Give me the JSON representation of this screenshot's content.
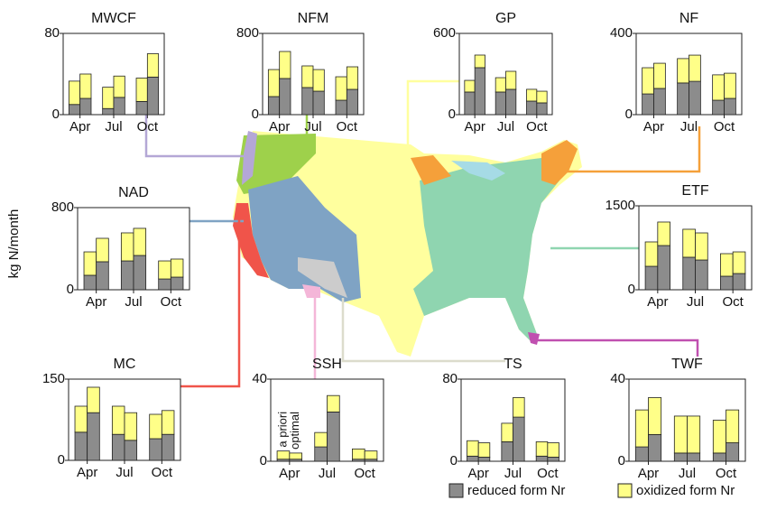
{
  "y_label": "kg N/month",
  "legend": [
    {
      "name": "reduced form Nr",
      "color": "#8c8c8c"
    },
    {
      "name": "oxidized form Nr",
      "color": "#ffff88"
    }
  ],
  "chart_data": [
    {
      "type": "bar",
      "title": "MWCF",
      "categories": [
        "Apr",
        "Jul",
        "Oct"
      ],
      "ylim": [
        0,
        80
      ],
      "yticks": [
        0,
        80
      ],
      "series": [
        {
          "reduced": [
            10,
            6,
            13
          ],
          "oxidized": [
            23,
            21,
            23
          ]
        },
        {
          "reduced": [
            16,
            17,
            37
          ],
          "oxidized": [
            24,
            21,
            23
          ]
        }
      ]
    },
    {
      "type": "bar",
      "title": "NFM",
      "categories": [
        "Apr",
        "Jul",
        "Oct"
      ],
      "ylim": [
        0,
        800
      ],
      "yticks": [
        0,
        800
      ],
      "series": [
        {
          "reduced": [
            178,
            267,
            142
          ],
          "oxidized": [
            266,
            213,
            231
          ]
        },
        {
          "reduced": [
            356,
            231,
            249
          ],
          "oxidized": [
            266,
            213,
            222
          ]
        }
      ]
    },
    {
      "type": "bar",
      "title": "GP",
      "categories": [
        "Apr",
        "Jul",
        "Oct"
      ],
      "ylim": [
        0,
        600
      ],
      "yticks": [
        0,
        600
      ],
      "series": [
        {
          "reduced": [
            167,
            167,
            100
          ],
          "oxidized": [
            86,
            106,
            87
          ]
        },
        {
          "reduced": [
            347,
            187,
            87
          ],
          "oxidized": [
            93,
            133,
            86
          ]
        }
      ]
    },
    {
      "type": "bar",
      "title": "NF",
      "categories": [
        "Apr",
        "Jul",
        "Oct"
      ],
      "ylim": [
        0,
        400
      ],
      "yticks": [
        0,
        400
      ],
      "series": [
        {
          "reduced": [
            102,
            156,
            71
          ],
          "oxidized": [
            129,
            120,
            125
          ]
        },
        {
          "reduced": [
            129,
            164,
            80
          ],
          "oxidized": [
            124,
            129,
            124
          ]
        }
      ]
    },
    {
      "type": "bar",
      "title": "NAD",
      "categories": [
        "Apr",
        "Jul",
        "Oct"
      ],
      "ylim": [
        0,
        800
      ],
      "yticks": [
        0,
        800
      ],
      "series": [
        {
          "reduced": [
            141,
            281,
            105
          ],
          "oxidized": [
            228,
            273,
            176
          ]
        },
        {
          "reduced": [
            273,
            334,
            123
          ],
          "oxidized": [
            228,
            264,
            176
          ]
        }
      ]
    },
    {
      "type": "bar",
      "title": "ETF",
      "categories": [
        "Apr",
        "Jul",
        "Oct"
      ],
      "ylim": [
        0,
        1500
      ],
      "yticks": [
        0,
        1500
      ],
      "series": [
        {
          "reduced": [
            419,
            581,
            242
          ],
          "oxidized": [
            436,
            500,
            403
          ]
        },
        {
          "reduced": [
            790,
            532,
            290
          ],
          "oxidized": [
            420,
            484,
            387
          ]
        }
      ]
    },
    {
      "type": "bar",
      "title": "MC",
      "categories": [
        "Apr",
        "Jul",
        "Oct"
      ],
      "ylim": [
        0,
        150
      ],
      "yticks": [
        0,
        150
      ],
      "series": [
        {
          "reduced": [
            52,
            48,
            40
          ],
          "oxidized": [
            48,
            52,
            45
          ]
        },
        {
          "reduced": [
            88,
            37,
            48
          ],
          "oxidized": [
            47,
            51,
            44
          ]
        }
      ]
    },
    {
      "type": "bar",
      "title": "SSH",
      "categories": [
        "Apr",
        "Jul",
        "Oct"
      ],
      "ylim": [
        0,
        40
      ],
      "yticks": [
        0,
        40
      ],
      "bar_labels": [
        "a priori",
        "optimal"
      ],
      "series": [
        {
          "reduced": [
            1,
            7,
            1
          ],
          "oxidized": [
            4,
            7,
            5
          ]
        },
        {
          "reduced": [
            1,
            24,
            1
          ],
          "oxidized": [
            3,
            8,
            4
          ]
        }
      ]
    },
    {
      "type": "bar",
      "title": "TS",
      "categories": [
        "Apr",
        "Jul",
        "Oct"
      ],
      "ylim": [
        0,
        80
      ],
      "yticks": [
        0,
        80
      ],
      "series": [
        {
          "reduced": [
            5,
            19,
            5
          ],
          "oxidized": [
            15,
            18,
            14
          ]
        },
        {
          "reduced": [
            4,
            43,
            4
          ],
          "oxidized": [
            14,
            19,
            14
          ]
        }
      ]
    },
    {
      "type": "bar",
      "title": "TWF",
      "categories": [
        "Apr",
        "Jul",
        "Oct"
      ],
      "ylim": [
        0,
        40
      ],
      "yticks": [
        0,
        40
      ],
      "series": [
        {
          "reduced": [
            7,
            4,
            4
          ],
          "oxidized": [
            18,
            18,
            16
          ]
        },
        {
          "reduced": [
            13,
            4,
            9
          ],
          "oxidized": [
            18,
            18,
            16
          ]
        }
      ]
    }
  ]
}
